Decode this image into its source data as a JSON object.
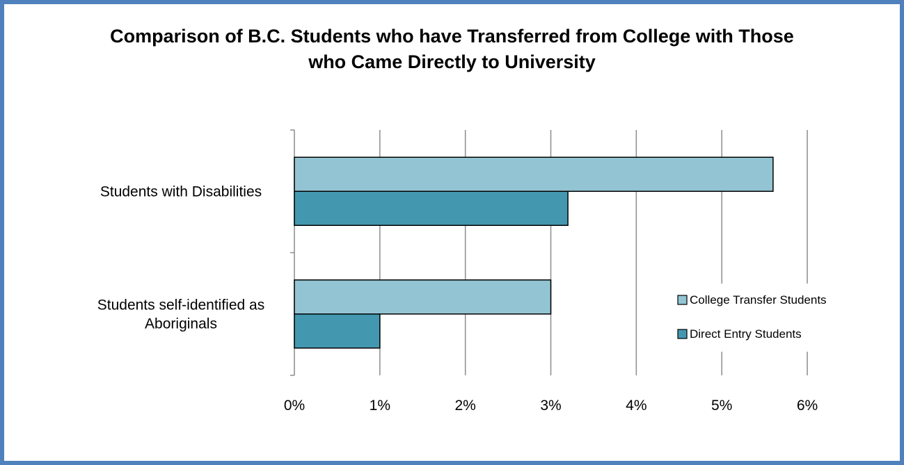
{
  "colors": {
    "frame_border": "#4f81bd",
    "college_transfer": "#93c4d3",
    "direct_entry": "#4398b0",
    "gridline": "#8c8c8c"
  },
  "chart_data": {
    "type": "bar",
    "orientation": "horizontal",
    "title_lines": [
      "Comparison of B.C. Students who have Transferred from College with Those",
      "who Came Directly to University"
    ],
    "categories": [
      [
        "Students with Disabilities"
      ],
      [
        "Students self-identified as",
        "Aboriginals"
      ]
    ],
    "series": [
      {
        "name": "College Transfer Students",
        "values": [
          5.6,
          3.0
        ],
        "color": "#93c4d3"
      },
      {
        "name": "Direct Entry Students",
        "values": [
          3.2,
          1.0
        ],
        "color": "#4398b0"
      }
    ],
    "x_ticks": [
      "0%",
      "1%",
      "2%",
      "3%",
      "4%",
      "5%",
      "6%"
    ],
    "xlim": [
      0,
      6
    ],
    "xlabel": "",
    "ylabel": "",
    "grid": "vertical",
    "legend_position": "right"
  }
}
